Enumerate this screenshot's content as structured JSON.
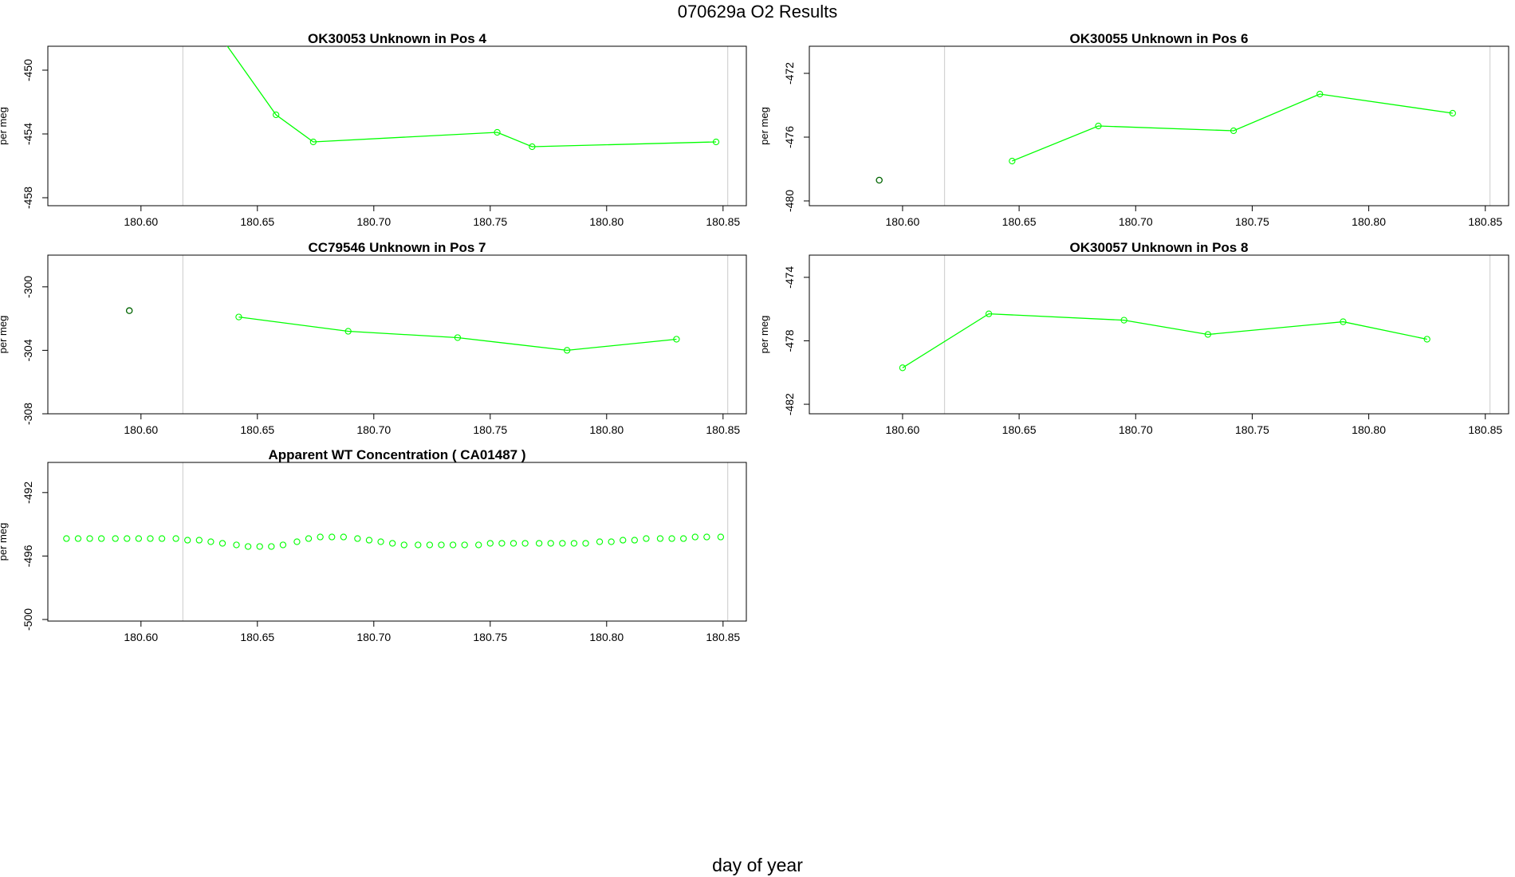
{
  "page_title": "070629a  O2 Results",
  "x_axis_title": "day of year",
  "colors": {
    "series": "#00ff00",
    "outlier": "#006400",
    "ref_line": "#d3d3d3",
    "frame": "#000000"
  },
  "chart_data": [
    {
      "type": "line",
      "title": "OK30053    Unknown in Pos 4",
      "ylabel": "per meg",
      "xlim": [
        180.56,
        180.86
      ],
      "ylim": [
        -458.5,
        -448.5
      ],
      "xticks": [
        "180.60",
        "180.65",
        "180.70",
        "180.75",
        "180.80",
        "180.85"
      ],
      "yticks": [
        "-450",
        "-454",
        "-458"
      ],
      "ref_lines_x": [
        180.618,
        180.852
      ],
      "series": [
        {
          "x": [
            180.625,
            180.658,
            180.674,
            180.753,
            180.768,
            180.847
          ],
          "y": [
            -446.0,
            -452.8,
            -454.5,
            -453.9,
            -454.8,
            -454.5
          ]
        }
      ],
      "outliers": []
    },
    {
      "type": "line",
      "title": "OK30055    Unknown in Pos 6",
      "ylabel": "per meg",
      "xlim": [
        180.56,
        180.86
      ],
      "ylim": [
        -480.3,
        -470.3
      ],
      "xticks": [
        "180.60",
        "180.65",
        "180.70",
        "180.75",
        "180.80",
        "180.85"
      ],
      "yticks": [
        "-472",
        "-476",
        "-480"
      ],
      "ref_lines_x": [
        180.618,
        180.852
      ],
      "series": [
        {
          "x": [
            180.647,
            180.684,
            180.742,
            180.779,
            180.836
          ],
          "y": [
            -477.5,
            -475.3,
            -475.6,
            -473.3,
            -474.5
          ]
        }
      ],
      "outliers": [
        {
          "x": 180.59,
          "y": -478.7
        }
      ]
    },
    {
      "type": "line",
      "title": "CC79546    Unknown in Pos 7",
      "ylabel": "per meg",
      "xlim": [
        180.56,
        180.86
      ],
      "ylim": [
        -308.0,
        -298.0
      ],
      "xticks": [
        "180.60",
        "180.65",
        "180.70",
        "180.75",
        "180.80",
        "180.85"
      ],
      "yticks": [
        "-300",
        "-304",
        "-308"
      ],
      "ref_lines_x": [
        180.618,
        180.852
      ],
      "series": [
        {
          "x": [
            180.642,
            180.689,
            180.736,
            180.783,
            180.83
          ],
          "y": [
            -301.9,
            -302.8,
            -303.2,
            -304.0,
            -303.3
          ]
        }
      ],
      "outliers": [
        {
          "x": 180.595,
          "y": -301.5
        }
      ]
    },
    {
      "type": "line",
      "title": "OK30057    Unknown in Pos 8",
      "ylabel": "per meg",
      "xlim": [
        180.56,
        180.86
      ],
      "ylim": [
        -482.6,
        -472.6
      ],
      "xticks": [
        "180.60",
        "180.65",
        "180.70",
        "180.75",
        "180.80",
        "180.85"
      ],
      "yticks": [
        "-474",
        "-478",
        "-482"
      ],
      "ref_lines_x": [
        180.618,
        180.852
      ],
      "series": [
        {
          "x": [
            180.6,
            180.637,
            180.695,
            180.731,
            180.789,
            180.825
          ],
          "y": [
            -479.7,
            -476.3,
            -476.7,
            -477.6,
            -476.8,
            -477.9
          ]
        }
      ],
      "outliers": []
    },
    {
      "type": "scatter",
      "title": "Apparent WT Concentration ( CA01487 )",
      "ylabel": "per meg",
      "xlim": [
        180.56,
        180.86
      ],
      "ylim": [
        -500.1,
        -490.1
      ],
      "xticks": [
        "180.60",
        "180.65",
        "180.70",
        "180.75",
        "180.80",
        "180.85"
      ],
      "yticks": [
        "-492",
        "-496",
        "-500"
      ],
      "ref_lines_x": [
        180.618,
        180.852
      ],
      "series": [
        {
          "x": [
            180.568,
            180.573,
            180.578,
            180.583,
            180.589,
            180.594,
            180.599,
            180.604,
            180.609,
            180.615,
            180.62,
            180.625,
            180.63,
            180.635,
            180.641,
            180.646,
            180.651,
            180.656,
            180.661,
            180.667,
            180.672,
            180.677,
            180.682,
            180.687,
            180.693,
            180.698,
            180.703,
            180.708,
            180.713,
            180.719,
            180.724,
            180.729,
            180.734,
            180.739,
            180.745,
            180.75,
            180.755,
            180.76,
            180.765,
            180.771,
            180.776,
            180.781,
            180.786,
            180.791,
            180.797,
            180.802,
            180.807,
            180.812,
            180.817,
            180.823,
            180.828,
            180.833,
            180.838,
            180.843,
            180.849
          ],
          "y": [
            -494.9,
            -494.9,
            -494.9,
            -494.9,
            -494.9,
            -494.9,
            -494.9,
            -494.9,
            -494.9,
            -494.9,
            -495.0,
            -495.0,
            -495.1,
            -495.2,
            -495.3,
            -495.4,
            -495.4,
            -495.4,
            -495.3,
            -495.1,
            -494.9,
            -494.8,
            -494.8,
            -494.8,
            -494.9,
            -495.0,
            -495.1,
            -495.2,
            -495.3,
            -495.3,
            -495.3,
            -495.3,
            -495.3,
            -495.3,
            -495.3,
            -495.2,
            -495.2,
            -495.2,
            -495.2,
            -495.2,
            -495.2,
            -495.2,
            -495.2,
            -495.2,
            -495.1,
            -495.1,
            -495.0,
            -495.0,
            -494.9,
            -494.9,
            -494.9,
            -494.9,
            -494.8,
            -494.8,
            -494.8
          ]
        }
      ],
      "outliers": []
    }
  ]
}
